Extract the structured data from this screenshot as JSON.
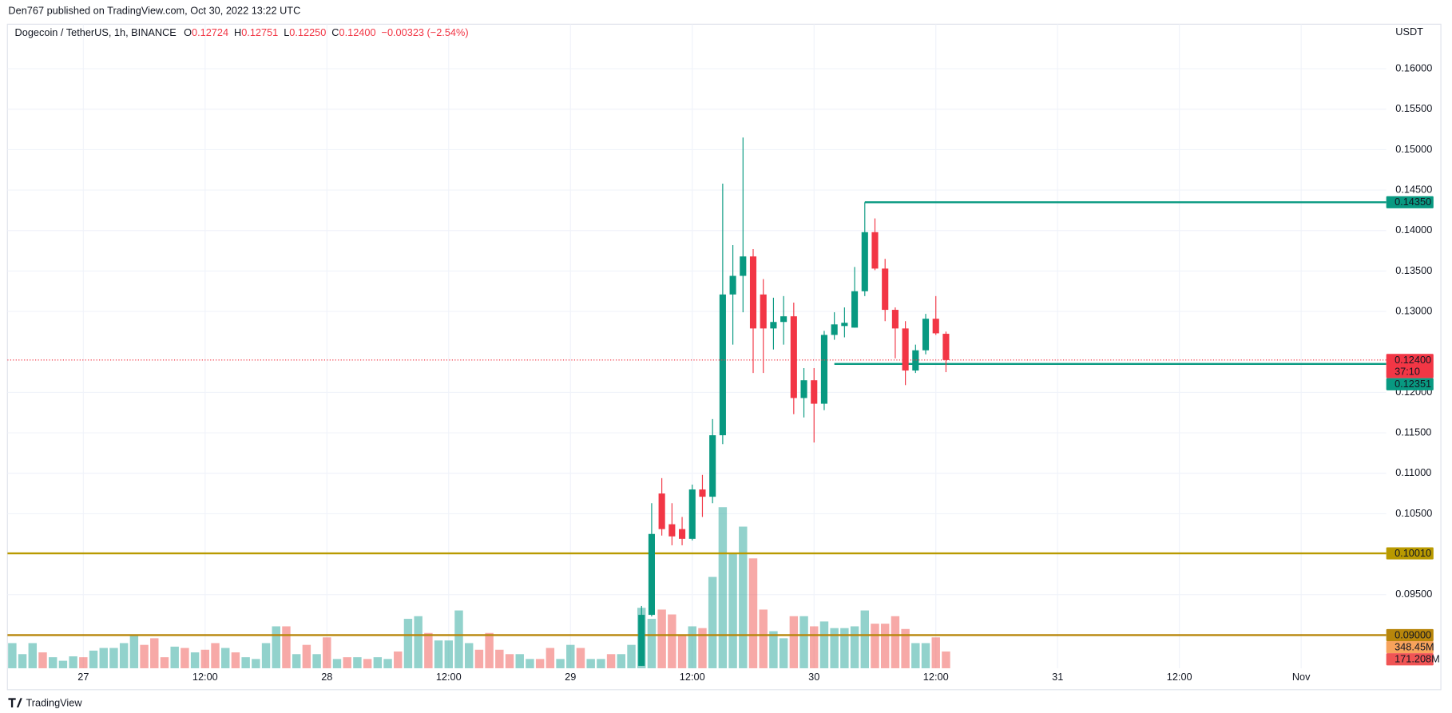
{
  "header": {
    "published": "Den767 published on TradingView.com, Oct 30, 2022 13:22 UTC"
  },
  "footer": {
    "logo": "TradingView"
  },
  "chart_data": {
    "type": "candlestick",
    "title": "Dogecoin / TetherUS, 1h, BINANCE",
    "ohlc_legend": [
      {
        "key": "O",
        "value": 0.12724,
        "label": "0.12724"
      },
      {
        "key": "H",
        "value": 0.12751,
        "label": "0.12751"
      },
      {
        "key": "L",
        "value": 0.1225,
        "label": "0.12250"
      },
      {
        "key": "C",
        "value": 0.124,
        "label": "0.12400"
      }
    ],
    "change": {
      "value": -0.00323,
      "label": "−0.00323 (−2.54%)"
    },
    "y_unit": "USDT",
    "up_color": "#089981",
    "down_color": "#f23645",
    "grid": true,
    "x": [
      -7,
      -6,
      -5,
      -4,
      -3,
      -2,
      -1,
      0,
      1,
      2,
      3,
      4,
      5,
      6,
      7,
      8,
      9,
      10,
      11,
      12,
      13,
      14,
      15,
      16,
      17,
      18,
      19,
      20,
      21,
      22,
      23,
      24,
      25,
      26,
      27,
      28,
      29,
      30,
      31,
      32,
      33,
      34,
      35,
      36,
      37,
      38,
      39,
      40,
      41,
      42,
      43,
      44,
      45,
      46,
      47,
      48,
      49,
      50,
      51,
      52,
      53,
      54,
      55,
      56,
      57,
      58,
      59,
      60,
      61,
      62,
      63,
      64,
      65,
      66,
      67,
      68,
      69,
      70,
      71,
      72,
      73,
      74,
      75,
      76,
      77,
      78,
      79,
      80,
      81,
      82,
      83,
      84,
      85
    ],
    "open": [
      null,
      null,
      null,
      null,
      null,
      null,
      null,
      null,
      null,
      null,
      null,
      null,
      null,
      null,
      null,
      null,
      null,
      null,
      null,
      null,
      null,
      null,
      null,
      null,
      null,
      null,
      null,
      null,
      null,
      null,
      null,
      null,
      null,
      null,
      null,
      null,
      null,
      null,
      null,
      null,
      null,
      null,
      null,
      null,
      null,
      null,
      null,
      null,
      null,
      null,
      null,
      null,
      null,
      null,
      null,
      null,
      null,
      null,
      null,
      null,
      null,
      null,
      0.0862,
      0.0925,
      0.1075,
      0.1037,
      0.1031,
      0.1019,
      0.108,
      0.1071,
      0.1147,
      0.1321,
      0.1344,
      0.1368,
      0.1321,
      0.1279,
      0.1287,
      0.1294,
      0.1193,
      0.1215,
      0.1186,
      0.1271,
      0.1282,
      0.128,
      0.1325,
      0.1398,
      0.1353,
      0.1302,
      0.1279,
      0.1227,
      0.1252,
      0.1291,
      0.12724
    ],
    "high": [
      null,
      null,
      null,
      null,
      null,
      null,
      null,
      null,
      null,
      null,
      null,
      null,
      null,
      null,
      null,
      null,
      null,
      null,
      null,
      null,
      null,
      null,
      null,
      null,
      null,
      null,
      null,
      null,
      null,
      null,
      null,
      null,
      null,
      null,
      null,
      null,
      null,
      null,
      null,
      null,
      null,
      null,
      null,
      null,
      null,
      null,
      null,
      null,
      null,
      null,
      null,
      null,
      null,
      null,
      null,
      null,
      null,
      null,
      null,
      null,
      null,
      null,
      0.0936,
      0.1063,
      0.1094,
      0.1063,
      0.1046,
      0.1086,
      0.1098,
      0.1167,
      0.1458,
      0.1382,
      0.1515,
      0.1377,
      0.134,
      0.1317,
      0.1319,
      0.1311,
      0.123,
      0.123,
      0.1276,
      0.1299,
      0.1305,
      0.1355,
      0.1435,
      0.1415,
      0.1365,
      0.1305,
      0.1288,
      0.1259,
      0.1297,
      0.1319,
      0.12751
    ],
    "low": [
      null,
      null,
      null,
      null,
      null,
      null,
      null,
      null,
      null,
      null,
      null,
      null,
      null,
      null,
      null,
      null,
      null,
      null,
      null,
      null,
      null,
      null,
      null,
      null,
      null,
      null,
      null,
      null,
      null,
      null,
      null,
      null,
      null,
      null,
      null,
      null,
      null,
      null,
      null,
      null,
      null,
      null,
      null,
      null,
      null,
      null,
      null,
      null,
      null,
      null,
      null,
      null,
      null,
      null,
      null,
      null,
      null,
      null,
      null,
      null,
      null,
      null,
      0.0862,
      0.0923,
      0.1023,
      0.1011,
      0.1011,
      0.1017,
      0.1046,
      0.1063,
      0.1136,
      0.1259,
      0.1299,
      0.1224,
      0.1224,
      0.1253,
      0.1259,
      0.1173,
      0.1169,
      0.1138,
      0.1178,
      0.1265,
      0.1268,
      0.128,
      0.1319,
      0.1351,
      0.1288,
      0.1242,
      0.1209,
      0.1224,
      0.1247,
      0.1271,
      0.1225
    ],
    "close": [
      null,
      null,
      null,
      null,
      null,
      null,
      null,
      null,
      null,
      null,
      null,
      null,
      null,
      null,
      null,
      null,
      null,
      null,
      null,
      null,
      null,
      null,
      null,
      null,
      null,
      null,
      null,
      null,
      null,
      null,
      null,
      null,
      null,
      null,
      null,
      null,
      null,
      null,
      null,
      null,
      null,
      null,
      null,
      null,
      null,
      null,
      null,
      null,
      null,
      null,
      null,
      null,
      null,
      null,
      null,
      null,
      null,
      null,
      null,
      null,
      null,
      null,
      0.0925,
      0.1025,
      0.1031,
      0.1022,
      0.1019,
      0.108,
      0.1071,
      0.1147,
      0.1321,
      0.1344,
      0.1368,
      0.1279,
      0.1279,
      0.1287,
      0.1294,
      0.1193,
      0.1215,
      0.1186,
      0.1271,
      0.1284,
      0.1286,
      0.1325,
      0.1398,
      0.1353,
      0.1302,
      0.1279,
      0.1227,
      0.1252,
      0.1291,
      0.1273,
      0.124
    ],
    "volume": {
      "ylim": [
        0,
        2000
      ],
      "values": [
        285,
        160,
        285,
        180,
        125,
        85,
        135,
        125,
        200,
        230,
        230,
        285,
        370,
        265,
        340,
        125,
        245,
        230,
        180,
        210,
        285,
        230,
        180,
        125,
        105,
        285,
        475,
        475,
        160,
        265,
        160,
        350,
        105,
        125,
        125,
        105,
        125,
        105,
        190,
        560,
        590,
        400,
        315,
        315,
        655,
        285,
        210,
        400,
        210,
        160,
        160,
        105,
        105,
        230,
        105,
        265,
        230,
        105,
        105,
        160,
        160,
        265,
        685,
        560,
        665,
        610,
        370,
        475,
        455,
        1035,
        1825,
        1300,
        1605,
        1245,
        665,
        420,
        340,
        590,
        590,
        475,
        530,
        455,
        455,
        475,
        655,
        505,
        505,
        590,
        445,
        285,
        285,
        350,
        190
      ],
      "colors": [
        "#26a69a",
        "#26a69a",
        "#26a69a",
        "#ef5350",
        "#26a69a",
        "#26a69a",
        "#26a69a",
        "#ef5350",
        "#26a69a",
        "#26a69a",
        "#26a69a",
        "#26a69a",
        "#26a69a",
        "#ef5350",
        "#ef5350",
        "#ef5350",
        "#26a69a",
        "#ef5350",
        "#26a69a",
        "#ef5350",
        "#ef5350",
        "#26a69a",
        "#ef5350",
        "#26a69a",
        "#26a69a",
        "#26a69a",
        "#26a69a",
        "#ef5350",
        "#26a69a",
        "#ef5350",
        "#26a69a",
        "#ef5350",
        "#26a69a",
        "#ef5350",
        "#26a69a",
        "#ef5350",
        "#26a69a",
        "#26a69a",
        "#ef5350",
        "#26a69a",
        "#26a69a",
        "#ef5350",
        "#26a69a",
        "#26a69a",
        "#26a69a",
        "#26a69a",
        "#ef5350",
        "#ef5350",
        "#ef5350",
        "#ef5350",
        "#26a69a",
        "#26a69a",
        "#ef5350",
        "#ef5350",
        "#26a69a",
        "#26a69a",
        "#ef5350",
        "#26a69a",
        "#26a69a",
        "#ef5350",
        "#26a69a",
        "#26a69a",
        "#26a69a",
        "#26a69a",
        "#ef5350",
        "#ef5350",
        "#ef5350",
        "#26a69a",
        "#ef5350",
        "#26a69a",
        "#26a69a",
        "#26a69a",
        "#26a69a",
        "#ef5350",
        "#ef5350",
        "#26a69a",
        "#26a69a",
        "#ef5350",
        "#26a69a",
        "#ef5350",
        "#26a69a",
        "#26a69a",
        "#26a69a",
        "#26a69a",
        "#26a69a",
        "#ef5350",
        "#ef5350",
        "#ef5350",
        "#ef5350",
        "#26a69a",
        "#26a69a",
        "#ef5350",
        "#ef5350"
      ],
      "labels": [
        {
          "value": 348.45,
          "label": "348.45M",
          "color": "#f7a35c",
          "text_color": "#131722"
        },
        {
          "value": 171.208,
          "label": "171.208M",
          "color": "#f05454",
          "text_color": "#ffffff"
        }
      ]
    },
    "xlim": [
      -7.48,
      128.38
    ],
    "xticks": [
      {
        "value": 0,
        "label": "27"
      },
      {
        "value": 12,
        "label": "12:00"
      },
      {
        "value": 24,
        "label": "28"
      },
      {
        "value": 36,
        "label": "12:00"
      },
      {
        "value": 48,
        "label": "29"
      },
      {
        "value": 60,
        "label": "12:00"
      },
      {
        "value": 72,
        "label": "30"
      },
      {
        "value": 84,
        "label": "12:00"
      },
      {
        "value": 96,
        "label": "31"
      },
      {
        "value": 108,
        "label": "12:00"
      },
      {
        "value": 120,
        "label": "Nov"
      }
    ],
    "ylim": [
      0.0859,
      0.1655
    ],
    "yticks": [
      {
        "value": 0.095,
        "label": "0.09500"
      },
      {
        "value": 0.105,
        "label": "0.10500"
      },
      {
        "value": 0.11,
        "label": "0.11000"
      },
      {
        "value": 0.115,
        "label": "0.11500"
      },
      {
        "value": 0.12,
        "label": "0.12000"
      },
      {
        "value": 0.13,
        "label": "0.13000"
      },
      {
        "value": 0.135,
        "label": "0.13500"
      },
      {
        "value": 0.14,
        "label": "0.14000"
      },
      {
        "value": 0.145,
        "label": "0.14500"
      },
      {
        "value": 0.15,
        "label": "0.15000"
      },
      {
        "value": 0.155,
        "label": "0.15500"
      },
      {
        "value": 0.16,
        "label": "0.16000"
      }
    ],
    "levels": [
      {
        "value": 0.1435,
        "label": "0.14350",
        "color": "#089981",
        "start_x": 77
      },
      {
        "value": 0.12351,
        "label": "0.12351",
        "color": "#089981",
        "start_x": 74
      },
      {
        "value": 0.1001,
        "label": "0.10010",
        "color": "#b99a00"
      },
      {
        "value": 0.09,
        "label": "0.09000",
        "color": "#b8860b"
      }
    ],
    "last_price": {
      "value": 0.124,
      "label": "0.12400",
      "countdown": "37:10",
      "color": "#f23645"
    }
  }
}
